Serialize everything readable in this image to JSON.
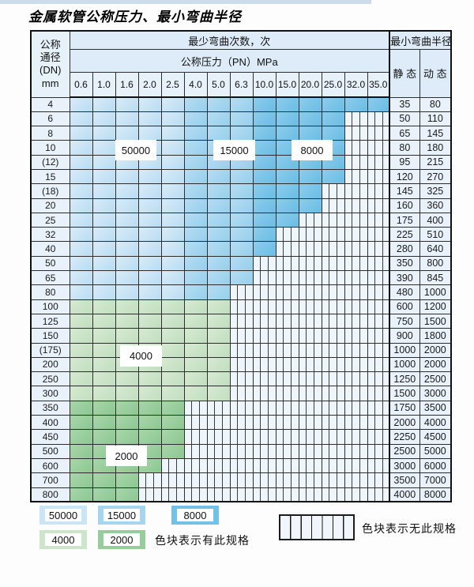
{
  "page_title": "金属软管公称压力、最小弯曲半径",
  "table": {
    "dn_header_lines": [
      "公称",
      "通径",
      "(DN)",
      "mm"
    ],
    "bend_times_header": "最少弯曲次数，次",
    "pressure_header": "公称压力（PN）MPa",
    "radius_header": "最小弯曲半径",
    "static_header": "静 态",
    "dynamic_header": "动 态",
    "pressure_columns": [
      "0.6",
      "1.0",
      "1.6",
      "2.0",
      "2.5",
      "4.0",
      "5.0",
      "6.3",
      "10.0",
      "15.0",
      "20.0",
      "25.0",
      "32.0",
      "35.0"
    ],
    "rows": [
      {
        "dn": "4",
        "colored": 14,
        "zone": "blue",
        "static": "35",
        "dynamic": "80"
      },
      {
        "dn": "6",
        "colored": 12,
        "zone": "blue",
        "static": "50",
        "dynamic": "110"
      },
      {
        "dn": "8",
        "colored": 12,
        "zone": "blue",
        "static": "65",
        "dynamic": "145"
      },
      {
        "dn": "10",
        "colored": 12,
        "zone": "blue",
        "static": "80",
        "dynamic": "180"
      },
      {
        "dn": "(12)",
        "colored": 12,
        "zone": "blue",
        "static": "95",
        "dynamic": "215"
      },
      {
        "dn": "15",
        "colored": 12,
        "zone": "blue",
        "static": "120",
        "dynamic": "270"
      },
      {
        "dn": "(18)",
        "colored": 11,
        "zone": "blue",
        "static": "145",
        "dynamic": "325"
      },
      {
        "dn": "20",
        "colored": 11,
        "zone": "blue",
        "static": "160",
        "dynamic": "360"
      },
      {
        "dn": "25",
        "colored": 10,
        "zone": "blue",
        "static": "175",
        "dynamic": "400"
      },
      {
        "dn": "32",
        "colored": 9,
        "zone": "blue",
        "static": "225",
        "dynamic": "510"
      },
      {
        "dn": "40",
        "colored": 9,
        "zone": "blue",
        "static": "280",
        "dynamic": "640"
      },
      {
        "dn": "50",
        "colored": 8,
        "zone": "blue",
        "static": "350",
        "dynamic": "800"
      },
      {
        "dn": "65",
        "colored": 8,
        "zone": "blue",
        "static": "390",
        "dynamic": "845"
      },
      {
        "dn": "80",
        "colored": 7,
        "zone": "blue",
        "static": "480",
        "dynamic": "1000"
      },
      {
        "dn": "100",
        "colored": 7,
        "zone": "g1",
        "static": "600",
        "dynamic": "1200"
      },
      {
        "dn": "125",
        "colored": 7,
        "zone": "g1",
        "static": "750",
        "dynamic": "1500"
      },
      {
        "dn": "150",
        "colored": 7,
        "zone": "g1",
        "static": "900",
        "dynamic": "1800"
      },
      {
        "dn": "(175)",
        "colored": 7,
        "zone": "g1",
        "static": "1000",
        "dynamic": "2000"
      },
      {
        "dn": "200",
        "colored": 7,
        "zone": "g1",
        "static": "1000",
        "dynamic": "2000"
      },
      {
        "dn": "250",
        "colored": 7,
        "zone": "g1",
        "static": "1250",
        "dynamic": "2500"
      },
      {
        "dn": "300",
        "colored": 7,
        "zone": "g1",
        "static": "1500",
        "dynamic": "3000"
      },
      {
        "dn": "350",
        "colored": 5,
        "zone": "g2",
        "static": "1750",
        "dynamic": "3500"
      },
      {
        "dn": "400",
        "colored": 5,
        "zone": "g2",
        "static": "2000",
        "dynamic": "4000"
      },
      {
        "dn": "450",
        "colored": 5,
        "zone": "g2",
        "static": "2250",
        "dynamic": "4500"
      },
      {
        "dn": "500",
        "colored": 5,
        "zone": "g2",
        "static": "2500",
        "dynamic": "5000"
      },
      {
        "dn": "600",
        "colored": 4,
        "zone": "g2",
        "static": "3000",
        "dynamic": "6000"
      },
      {
        "dn": "700",
        "colored": 3,
        "zone": "g2",
        "static": "3500",
        "dynamic": "7000"
      },
      {
        "dn": "800",
        "colored": 3,
        "zone": "g2",
        "static": "4000",
        "dynamic": "8000"
      }
    ],
    "blue_zone_column_split": {
      "b1_cols": "0.6-2.5",
      "b2_cols": "4.0-6.3",
      "b3_cols": "10.0-35.0"
    }
  },
  "overlay_labels": {
    "l50000": "50000",
    "l15000": "15000",
    "l8000": "8000",
    "l4000": "4000",
    "l2000": "2000"
  },
  "legend": {
    "items": [
      {
        "label": "50000",
        "color": "#c9e5f6"
      },
      {
        "label": "15000",
        "color": "#a6d5ef"
      },
      {
        "label": "8000",
        "color": "#72c1e8"
      },
      {
        "label": "4000",
        "color": "#cde5cb"
      },
      {
        "label": "2000",
        "color": "#97cd9b"
      }
    ],
    "has_spec_text": "色块表示有此规格",
    "no_spec_text": "色块表示无此规格"
  },
  "colors": {
    "zone_50000": "#c9e5f6",
    "zone_15000": "#a6d5ef",
    "zone_8000": "#72c1e8",
    "zone_4000": "#cde5cb",
    "zone_2000": "#97cd9b",
    "header_bg": "#ddecf8",
    "side_cell_bg": "#e9f2fa",
    "no_spec_bg": "#eef5fb",
    "grid_line": "#2d2d2d"
  }
}
